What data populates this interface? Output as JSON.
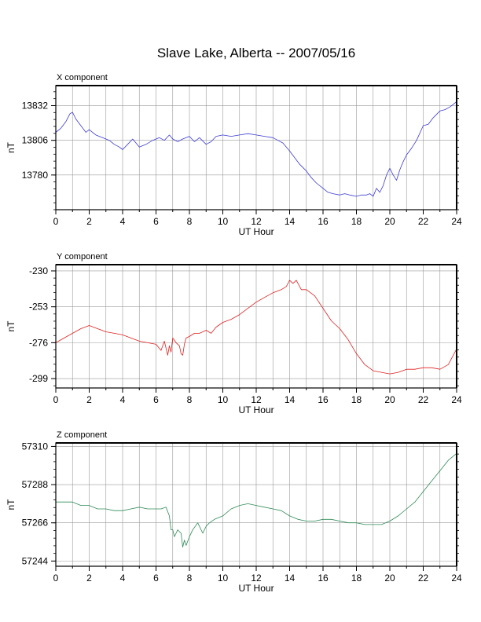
{
  "title": "Slave Lake, Alberta -- 2007/05/16",
  "chart_data": [
    {
      "type": "line",
      "title": "X component",
      "xlabel": "UT Hour",
      "ylabel": "nT",
      "xlim": [
        0,
        24
      ],
      "ylim": [
        13754,
        13847
      ],
      "xticks": [
        0,
        2,
        4,
        6,
        8,
        10,
        12,
        14,
        16,
        18,
        20,
        22,
        24
      ],
      "yticks": [
        13780,
        13806,
        13832
      ],
      "grid": true,
      "series": [
        {
          "color": "#3b3bd6",
          "x": [
            0,
            0.3,
            0.6,
            0.85,
            1.0,
            1.2,
            1.5,
            1.8,
            2.0,
            2.4,
            2.8,
            3.2,
            3.5,
            3.8,
            4.0,
            4.3,
            4.6,
            5.0,
            5.4,
            5.8,
            6.2,
            6.5,
            6.8,
            7.0,
            7.3,
            7.6,
            8.0,
            8.3,
            8.6,
            9.0,
            9.3,
            9.6,
            10.0,
            10.5,
            11.0,
            11.5,
            12.0,
            12.5,
            13.0,
            13.3,
            13.6,
            14.0,
            14.3,
            14.6,
            15.0,
            15.3,
            15.6,
            16.0,
            16.3,
            16.6,
            17.0,
            17.3,
            17.6,
            18.0,
            18.3,
            18.6,
            18.8,
            19.0,
            19.2,
            19.4,
            19.6,
            19.8,
            20.0,
            20.2,
            20.4,
            20.6,
            20.8,
            21.0,
            21.3,
            21.6,
            22.0,
            22.3,
            22.6,
            23.0,
            23.3,
            23.6,
            24.0
          ],
          "y": [
            13812,
            13815,
            13820,
            13826,
            13827,
            13822,
            13817,
            13812,
            13814,
            13810,
            13808,
            13806,
            13803,
            13801,
            13799,
            13803,
            13807,
            13801,
            13803,
            13806,
            13808,
            13806,
            13810,
            13807,
            13805,
            13807,
            13809,
            13805,
            13808,
            13803,
            13805,
            13809,
            13810,
            13809,
            13810,
            13811,
            13810,
            13809,
            13808,
            13806,
            13804,
            13798,
            13793,
            13788,
            13783,
            13778,
            13774,
            13770,
            13767,
            13766,
            13765,
            13766,
            13765,
            13764,
            13765,
            13765,
            13766,
            13764,
            13770,
            13767,
            13772,
            13780,
            13785,
            13780,
            13776,
            13784,
            13790,
            13795,
            13800,
            13806,
            13817,
            13818,
            13823,
            13828,
            13829,
            13831,
            13835
          ]
        }
      ]
    },
    {
      "type": "line",
      "title": "Y component",
      "xlabel": "UT Hour",
      "ylabel": "nT",
      "xlim": [
        0,
        24
      ],
      "ylim": [
        -305,
        -226
      ],
      "xticks": [
        0,
        2,
        4,
        6,
        8,
        10,
        12,
        14,
        16,
        18,
        20,
        22,
        24
      ],
      "yticks": [
        -230,
        -253,
        -276,
        -299
      ],
      "grid": true,
      "series": [
        {
          "color": "#e02020",
          "x": [
            0,
            0.5,
            1.0,
            1.5,
            2.0,
            2.5,
            3.0,
            3.5,
            4.0,
            4.5,
            5.0,
            5.5,
            6.0,
            6.3,
            6.5,
            6.7,
            6.8,
            6.9,
            7.0,
            7.2,
            7.4,
            7.5,
            7.6,
            7.7,
            7.8,
            8.0,
            8.3,
            8.6,
            9.0,
            9.3,
            9.6,
            10.0,
            10.5,
            11.0,
            11.5,
            12.0,
            12.5,
            13.0,
            13.5,
            13.8,
            14.0,
            14.2,
            14.4,
            14.7,
            15.0,
            15.5,
            16.0,
            16.5,
            17.0,
            17.5,
            18.0,
            18.5,
            19.0,
            19.5,
            20.0,
            20.5,
            21.0,
            21.5,
            22.0,
            22.5,
            23.0,
            23.5,
            24.0
          ],
          "y": [
            -276,
            -273,
            -270,
            -267,
            -265,
            -267,
            -269,
            -270,
            -271,
            -273,
            -275,
            -276,
            -277,
            -281,
            -275,
            -284,
            -278,
            -282,
            -273,
            -276,
            -278,
            -283,
            -284,
            -277,
            -273,
            -272,
            -270,
            -270,
            -268,
            -270,
            -266,
            -263,
            -261,
            -258,
            -254,
            -250,
            -247,
            -244,
            -242,
            -240,
            -236,
            -238,
            -236,
            -242,
            -242,
            -246,
            -254,
            -262,
            -267,
            -274,
            -283,
            -290,
            -294,
            -295,
            -296,
            -295,
            -293,
            -293,
            -292,
            -292,
            -293,
            -290,
            -280
          ]
        }
      ]
    },
    {
      "type": "line",
      "title": "Z component",
      "xlabel": "UT Hour",
      "ylabel": "nT",
      "xlim": [
        0,
        24
      ],
      "ylim": [
        57241,
        57312
      ],
      "xticks": [
        0,
        2,
        4,
        6,
        8,
        10,
        12,
        14,
        16,
        18,
        20,
        22,
        24
      ],
      "yticks": [
        57244,
        57266,
        57288,
        57310
      ],
      "grid": true,
      "series": [
        {
          "color": "#2e8b57",
          "x": [
            0,
            0.5,
            1.0,
            1.5,
            2.0,
            2.5,
            3.0,
            3.5,
            4.0,
            4.5,
            5.0,
            5.5,
            6.0,
            6.3,
            6.6,
            6.8,
            6.9,
            7.0,
            7.1,
            7.2,
            7.3,
            7.5,
            7.6,
            7.7,
            7.8,
            8.0,
            8.2,
            8.5,
            8.8,
            9.0,
            9.2,
            9.5,
            10.0,
            10.5,
            11.0,
            11.5,
            12.0,
            12.5,
            13.0,
            13.5,
            14.0,
            14.5,
            15.0,
            15.5,
            16.0,
            16.5,
            17.0,
            17.5,
            18.0,
            18.5,
            19.0,
            19.5,
            20.0,
            20.5,
            21.0,
            21.5,
            22.0,
            22.5,
            23.0,
            23.5,
            24.0
          ],
          "y": [
            57278,
            57278,
            57278,
            57276,
            57276,
            57274,
            57274,
            57273,
            57273,
            57274,
            57275,
            57274,
            57274,
            57274,
            57275,
            57270,
            57262,
            57262,
            57258,
            57260,
            57262,
            57260,
            57252,
            57256,
            57253,
            57258,
            57262,
            57266,
            57260,
            57264,
            57266,
            57268,
            57270,
            57274,
            57276,
            57277,
            57276,
            57275,
            57274,
            57273,
            57270,
            57268,
            57267,
            57267,
            57268,
            57268,
            57267,
            57266,
            57266,
            57265,
            57265,
            57265,
            57267,
            57270,
            57274,
            57278,
            57284,
            57290,
            57296,
            57302,
            57306
          ]
        }
      ]
    }
  ]
}
